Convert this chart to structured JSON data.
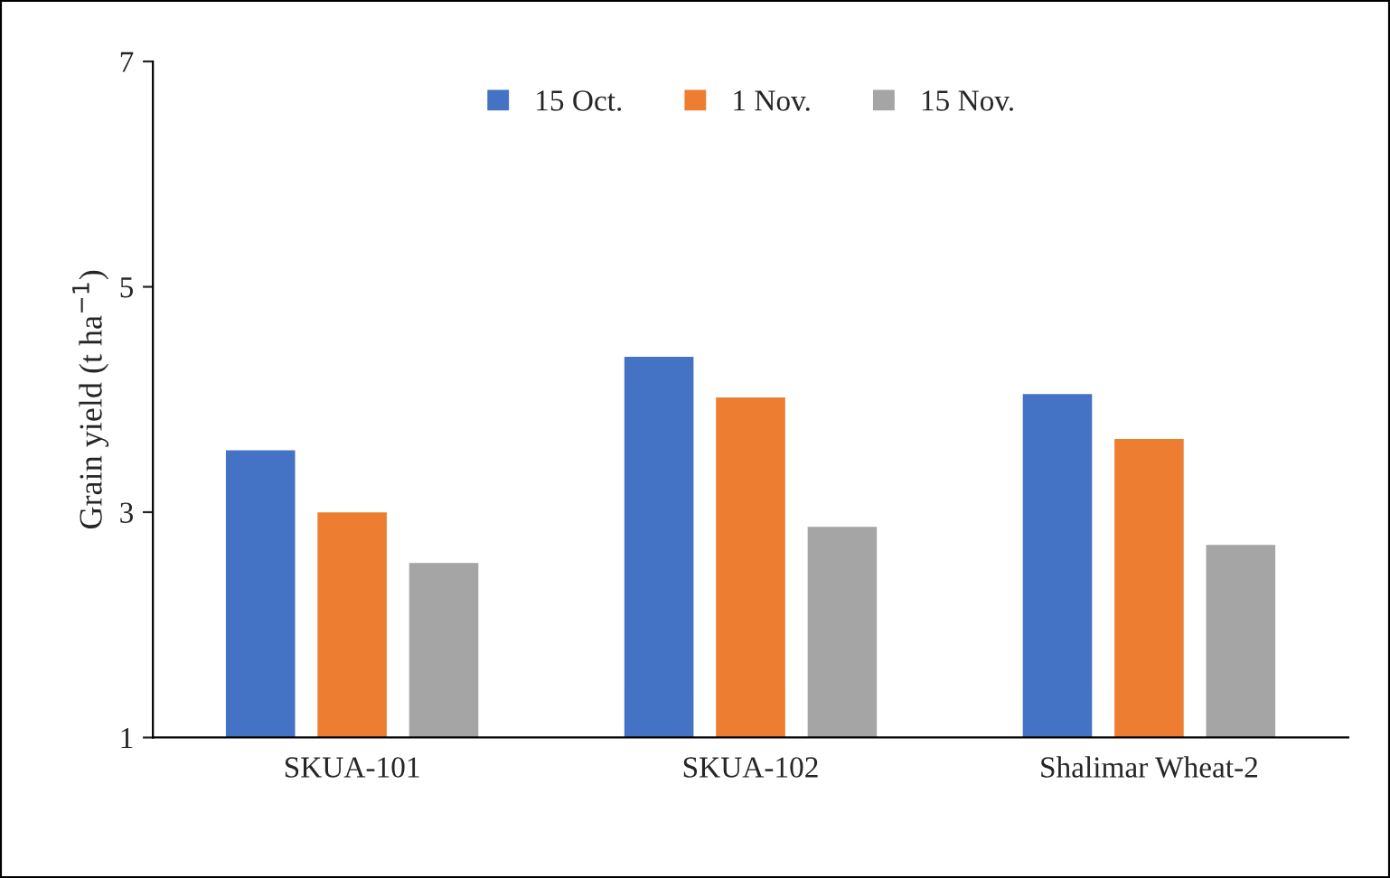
{
  "chart_data": {
    "type": "bar",
    "ylabel": "Grain yield (t ha$^{−1}$)",
    "categories": [
      "SKUA-101",
      "SKUA-102",
      "Shalimar Wheat-2"
    ],
    "series": [
      {
        "name": "15 Oct.",
        "color": "#4472c4",
        "values": [
          3.56,
          4.39,
          4.06
        ]
      },
      {
        "name": "1 Nov.",
        "color": "#ed7d31",
        "values": [
          3.01,
          4.03,
          3.66
        ]
      },
      {
        "name": "15 Nov.",
        "color": "#a5a5a5",
        "values": [
          2.56,
          2.88,
          2.72
        ]
      }
    ],
    "ylim": [
      1,
      7
    ],
    "yticks": [
      1,
      3,
      5,
      7
    ],
    "grid": false,
    "legend": "top"
  }
}
